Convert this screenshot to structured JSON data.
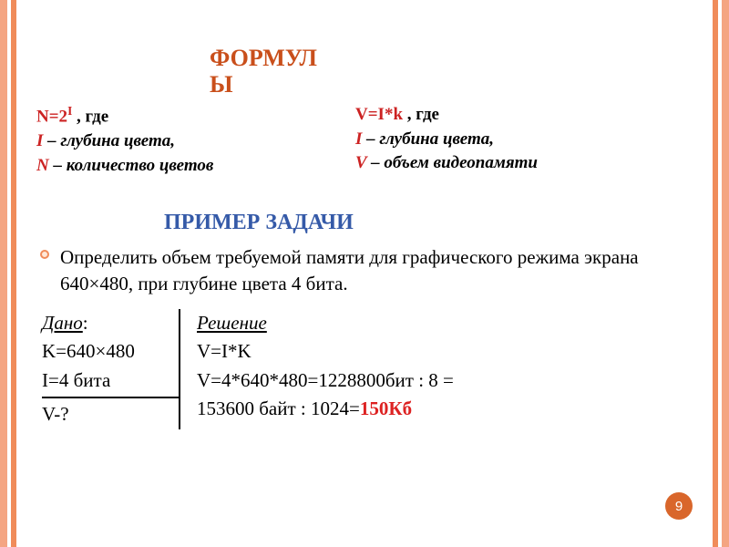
{
  "title": {
    "line1": "ФОРМУЛ",
    "line2": "Ы"
  },
  "formula_left": {
    "var1": "N=2",
    "exp": "I",
    "gde": " , где",
    "line2_var": " I ",
    "line2_text": "– глубина цвета,",
    "line3_var": " N ",
    "line3_text": "– количество цветов"
  },
  "formula_right": {
    "eq": "V=I*k",
    "gde": "  , где",
    "line2_var": " I ",
    "line2_text": "– глубина цвета,",
    "line3_var": "V ",
    "line3_text": "– объем видеопамяти"
  },
  "example_title": "ПРИМЕР ЗАДАЧИ",
  "task_text": "Определить объем требуемой памяти для графического режима экрана 640×480, при глубине цвета 4 бита.",
  "given": {
    "title": "Дано",
    "colon": ":",
    "l1": "K=640×480",
    "l2": "I=4 бита",
    "l3": "V-?"
  },
  "solution": {
    "title": "Решение",
    "l1": "V=I*K",
    "l2a": "V=4*640*480=1228800бит : 8 =",
    "l2b": "153600 байт : 1024=",
    "answer": "150Кб"
  },
  "pagenum": "9",
  "colors": {
    "title": "#c94f1b",
    "red": "#c22222",
    "blue": "#355aa8",
    "stripe_light": "#f4a582",
    "stripe_dark": "#f08c5a",
    "badge": "#d9662b"
  }
}
